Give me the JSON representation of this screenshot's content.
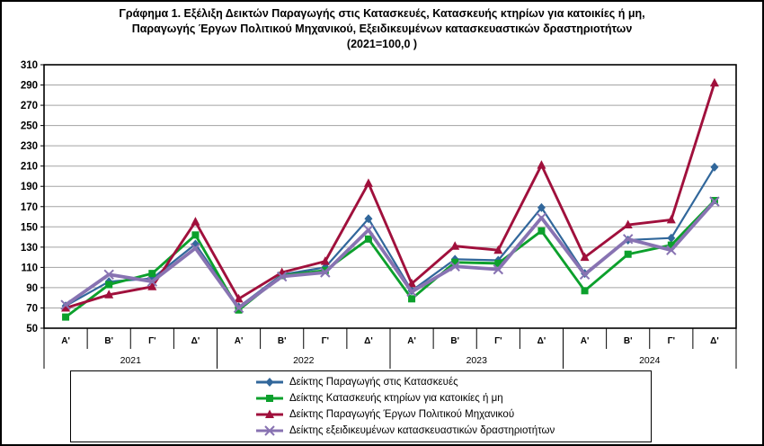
{
  "title": {
    "line1": "Γράφημα 1. Εξέλιξη  Δεικτών Παραγωγής στις Κατασκευές,  Κατασκευής κτηρίων για κατοικίες ή  μη,",
    "line2": "Παραγωγής Έργων Πολιτικού Μηχανικού,  Εξειδικευμένων κατασκευαστικών δραστηριοτήτων",
    "line3": "(2021=100,0 )"
  },
  "chart_data": {
    "type": "line",
    "x_years": [
      "2021",
      "2022",
      "2023",
      "2024"
    ],
    "x_quarters": [
      "Α'",
      "Β'",
      "Γ'",
      "Δ'"
    ],
    "categories": [
      "Α' 2021",
      "Β' 2021",
      "Γ' 2021",
      "Δ' 2021",
      "Α' 2022",
      "Β' 2022",
      "Γ' 2022",
      "Δ' 2022",
      "Α' 2023",
      "Β' 2023",
      "Γ' 2023",
      "Δ' 2023",
      "Α' 2024",
      "Β' 2024",
      "Γ' 2024",
      "Δ' 2024"
    ],
    "ylim": [
      50,
      310
    ],
    "ytick_step": 20,
    "grid": true,
    "legend_position": "bottom",
    "colors": {
      "gridline": "#A3A3A3",
      "axis": "#000000",
      "text": "#000000"
    },
    "series": [
      {
        "name": "Δείκτης Παραγωγής στις Κατασκευές",
        "color": "#31679B",
        "marker": "diamond",
        "values": [
          72,
          96,
          99,
          133,
          71,
          103,
          110,
          158,
          87,
          118,
          117,
          169,
          104,
          137,
          139,
          209
        ]
      },
      {
        "name": "Δείκτης Κατασκευής κτηρίων για κατοικίες ή μη",
        "color": "#0CA02C",
        "marker": "square",
        "values": [
          61,
          93,
          104,
          142,
          68,
          102,
          107,
          138,
          79,
          115,
          114,
          146,
          87,
          123,
          132,
          176
        ]
      },
      {
        "name": "Δείκτης Παραγωγής Έργων Πολιτικού Μηχανικού",
        "color": "#A0103C",
        "marker": "triangle",
        "values": [
          70,
          83,
          91,
          155,
          79,
          105,
          116,
          193,
          94,
          131,
          127,
          211,
          120,
          152,
          157,
          292
        ]
      },
      {
        "name": "Δείκτης εξειδικευμένων κατασκευαστικών δραστηριοτήτων",
        "color": "#8873B2",
        "marker": "x",
        "values": [
          73,
          103,
          96,
          129,
          70,
          101,
          105,
          147,
          86,
          111,
          108,
          159,
          103,
          138,
          127,
          175
        ]
      }
    ]
  }
}
